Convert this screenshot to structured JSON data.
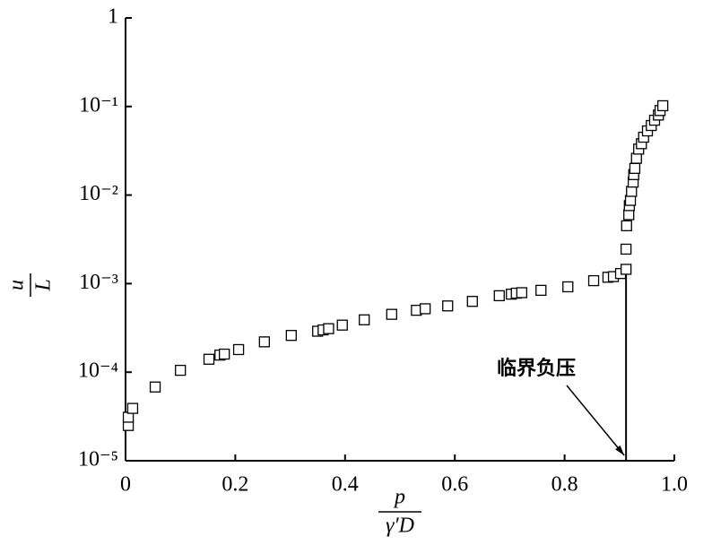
{
  "chart_data": {
    "type": "scatter",
    "log_y": true,
    "color": "#000000",
    "ylabel": {
      "numerator": "u",
      "denominator": "L"
    },
    "xlabel": {
      "numerator": "p",
      "denominator": "γ′D"
    },
    "xlim": [
      0,
      1
    ],
    "ylim": [
      1e-05,
      1
    ],
    "xticks": [
      0,
      0.2,
      0.4,
      0.6,
      0.8,
      {
        "value": 1,
        "label": "1.0"
      }
    ],
    "yticks": [
      {
        "value": 1e-05,
        "label": "10⁻⁵"
      },
      {
        "value": 0.0001,
        "label": "10⁻⁴"
      },
      {
        "value": 0.001,
        "label": "10⁻³"
      },
      {
        "value": 0.01,
        "label": "10⁻²"
      },
      {
        "value": 0.1,
        "label": "10⁻¹"
      },
      1
    ],
    "x": [
      0.005,
      0.005,
      0.013,
      0.054,
      0.1,
      0.152,
      0.172,
      0.18,
      0.206,
      0.253,
      0.302,
      0.35,
      0.36,
      0.37,
      0.395,
      0.435,
      0.485,
      0.53,
      0.546,
      0.587,
      0.632,
      0.681,
      0.703,
      0.712,
      0.722,
      0.757,
      0.806,
      0.853,
      0.879,
      0.889,
      0.902,
      0.912,
      0.912,
      0.913,
      0.917,
      0.918,
      0.92,
      0.922,
      0.925,
      0.926,
      0.928,
      0.931,
      0.935,
      0.94,
      0.944,
      0.951,
      0.958,
      0.964,
      0.971,
      0.974,
      0.979
    ],
    "values": [
      2.5e-05,
      3.1e-05,
      3.9e-05,
      6.8e-05,
      0.000105,
      0.00014,
      0.000156,
      0.00016,
      0.00018,
      0.00022,
      0.00026,
      0.00029,
      0.0003,
      0.00031,
      0.00034,
      0.00039,
      0.00045,
      0.0005,
      0.00052,
      0.00056,
      0.00063,
      0.00073,
      0.00076,
      0.00078,
      0.00079,
      0.00084,
      0.00092,
      0.00108,
      0.00118,
      0.0012,
      0.0013,
      0.00145,
      0.00245,
      0.0045,
      0.006,
      0.0076,
      0.0087,
      0.011,
      0.014,
      0.017,
      0.02,
      0.026,
      0.033,
      0.038,
      0.045,
      0.053,
      0.061,
      0.07,
      0.08,
      0.09,
      0.102
    ],
    "annotation": {
      "text": "临界负压",
      "x": 0.912,
      "y": 0.00145
    }
  }
}
